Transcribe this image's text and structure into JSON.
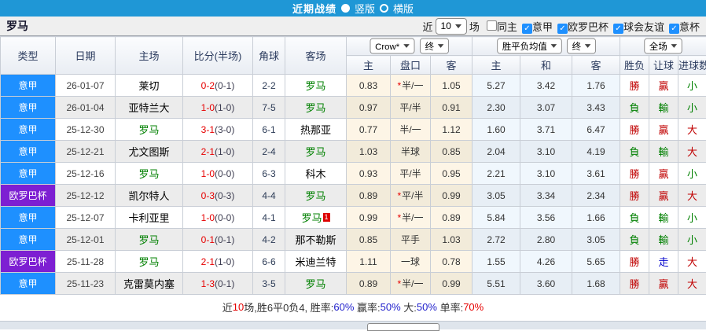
{
  "titlebar": {
    "title": "近期战绩",
    "vertical_label": "竖版",
    "horizontal_label": "横版"
  },
  "controls": {
    "team": "罗马",
    "recent_label": "近",
    "count_value": "10",
    "matches_label": "场",
    "checkboxes": [
      {
        "label": "同主",
        "checked": false
      },
      {
        "label": "意甲",
        "checked": true
      },
      {
        "label": "欧罗巴杯",
        "checked": true
      },
      {
        "label": "球会友谊",
        "checked": true
      },
      {
        "label": "意杯",
        "checked": true
      }
    ]
  },
  "table": {
    "headers": [
      "类型",
      "日期",
      "主场",
      "比分(半场)",
      "角球",
      "客场"
    ],
    "sub_headers": [
      "主",
      "盘口",
      "客",
      "主",
      "和",
      "客",
      "胜负",
      "让球",
      "进球数"
    ],
    "dropdowns": {
      "odds_company": "Crow*",
      "odds_time1": "终",
      "avg_label": "胜平负均值",
      "odds_time2": "终",
      "scope": "全场"
    },
    "rows": [
      {
        "type": "意甲",
        "type_color": "league_blue",
        "date": "26-01-07",
        "home": "莱切",
        "home_roma": false,
        "score": "0-2",
        "half": "(0-1)",
        "corner": "2-2",
        "away": "罗马",
        "away_roma": true,
        "badge": "",
        "crown_home": "0.83",
        "handicap_star": true,
        "handicap": "半/一",
        "crown_away": "1.05",
        "avg_home": "5.27",
        "avg_draw": "3.42",
        "avg_away": "1.76",
        "res": [
          [
            "勝",
            "red"
          ],
          [
            "贏",
            "red"
          ],
          [
            "小",
            "green"
          ]
        ]
      },
      {
        "type": "意甲",
        "type_color": "league_blue",
        "date": "26-01-04",
        "home": "亚特兰大",
        "home_roma": false,
        "score": "1-0",
        "half": "(1-0)",
        "corner": "7-5",
        "away": "罗马",
        "away_roma": true,
        "badge": "",
        "crown_home": "0.97",
        "handicap_star": false,
        "handicap": "平/半",
        "crown_away": "0.91",
        "avg_home": "2.30",
        "avg_draw": "3.07",
        "avg_away": "3.43",
        "res": [
          [
            "負",
            "green"
          ],
          [
            "輸",
            "green"
          ],
          [
            "小",
            "green"
          ]
        ]
      },
      {
        "type": "意甲",
        "type_color": "league_blue",
        "date": "25-12-30",
        "home": "罗马",
        "home_roma": true,
        "score": "3-1",
        "half": "(3-0)",
        "corner": "6-1",
        "away": "热那亚",
        "away_roma": false,
        "badge": "",
        "crown_home": "0.77",
        "handicap_star": false,
        "handicap": "半/一",
        "crown_away": "1.12",
        "avg_home": "1.60",
        "avg_draw": "3.71",
        "avg_away": "6.47",
        "res": [
          [
            "勝",
            "red"
          ],
          [
            "贏",
            "red"
          ],
          [
            "大",
            "red"
          ]
        ]
      },
      {
        "type": "意甲",
        "type_color": "league_blue",
        "date": "25-12-21",
        "home": "尤文图斯",
        "home_roma": false,
        "score": "2-1",
        "half": "(1-0)",
        "corner": "2-4",
        "away": "罗马",
        "away_roma": true,
        "badge": "",
        "crown_home": "1.03",
        "handicap_star": false,
        "handicap": "半球",
        "crown_away": "0.85",
        "avg_home": "2.04",
        "avg_draw": "3.10",
        "avg_away": "4.19",
        "res": [
          [
            "負",
            "green"
          ],
          [
            "輸",
            "green"
          ],
          [
            "大",
            "red"
          ]
        ]
      },
      {
        "type": "意甲",
        "type_color": "league_blue",
        "date": "25-12-16",
        "home": "罗马",
        "home_roma": true,
        "score": "1-0",
        "half": "(0-0)",
        "corner": "6-3",
        "away": "科木",
        "away_roma": false,
        "badge": "",
        "crown_home": "0.93",
        "handicap_star": false,
        "handicap": "平/半",
        "crown_away": "0.95",
        "avg_home": "2.21",
        "avg_draw": "3.10",
        "avg_away": "3.61",
        "res": [
          [
            "勝",
            "red"
          ],
          [
            "贏",
            "red"
          ],
          [
            "小",
            "green"
          ]
        ]
      },
      {
        "type": "欧罗巴杯",
        "type_color": "cup_purple",
        "date": "25-12-12",
        "home": "凯尔特人",
        "home_roma": false,
        "score": "0-3",
        "half": "(0-3)",
        "corner": "4-4",
        "away": "罗马",
        "away_roma": true,
        "badge": "",
        "crown_home": "0.89",
        "handicap_star": true,
        "handicap": "平/半",
        "crown_away": "0.99",
        "avg_home": "3.05",
        "avg_draw": "3.34",
        "avg_away": "2.34",
        "res": [
          [
            "勝",
            "red"
          ],
          [
            "贏",
            "red"
          ],
          [
            "大",
            "red"
          ]
        ]
      },
      {
        "type": "意甲",
        "type_color": "league_blue",
        "date": "25-12-07",
        "home": "卡利亚里",
        "home_roma": false,
        "score": "1-0",
        "half": "(0-0)",
        "corner": "4-1",
        "away": "罗马",
        "away_roma": true,
        "badge": "1",
        "crown_home": "0.99",
        "handicap_star": true,
        "handicap": "半/一",
        "crown_away": "0.89",
        "avg_home": "5.84",
        "avg_draw": "3.56",
        "avg_away": "1.66",
        "res": [
          [
            "負",
            "green"
          ],
          [
            "輸",
            "green"
          ],
          [
            "小",
            "green"
          ]
        ]
      },
      {
        "type": "意甲",
        "type_color": "league_blue",
        "date": "25-12-01",
        "home": "罗马",
        "home_roma": true,
        "score": "0-1",
        "half": "(0-1)",
        "corner": "4-2",
        "away": "那不勒斯",
        "away_roma": false,
        "badge": "",
        "crown_home": "0.85",
        "handicap_star": false,
        "handicap": "平手",
        "crown_away": "1.03",
        "avg_home": "2.72",
        "avg_draw": "2.80",
        "avg_away": "3.05",
        "res": [
          [
            "負",
            "green"
          ],
          [
            "輸",
            "green"
          ],
          [
            "小",
            "green"
          ]
        ]
      },
      {
        "type": "欧罗巴杯",
        "type_color": "cup_purple",
        "date": "25-11-28",
        "home": "罗马",
        "home_roma": true,
        "score": "2-1",
        "half": "(1-0)",
        "corner": "6-6",
        "away": "米迪兰特",
        "away_roma": false,
        "badge": "",
        "crown_home": "1.11",
        "handicap_star": false,
        "handicap": "一球",
        "crown_away": "0.78",
        "avg_home": "1.55",
        "avg_draw": "4.26",
        "avg_away": "5.65",
        "res": [
          [
            "勝",
            "red"
          ],
          [
            "走",
            "blue"
          ],
          [
            "大",
            "red"
          ]
        ]
      },
      {
        "type": "意甲",
        "type_color": "league_blue",
        "date": "25-11-23",
        "home": "克雷莫内塞",
        "home_roma": false,
        "score": "1-3",
        "half": "(0-1)",
        "corner": "3-5",
        "away": "罗马",
        "away_roma": true,
        "badge": "",
        "crown_home": "0.89",
        "handicap_star": true,
        "handicap": "半/一",
        "crown_away": "0.99",
        "avg_home": "5.51",
        "avg_draw": "3.60",
        "avg_away": "1.68",
        "res": [
          [
            "勝",
            "red"
          ],
          [
            "贏",
            "red"
          ],
          [
            "大",
            "red"
          ]
        ]
      }
    ]
  },
  "footer": {
    "segments": [
      {
        "t": "近",
        "c": "dark"
      },
      {
        "t": "10",
        "c": "red"
      },
      {
        "t": "场,胜6平0负4, 胜率:",
        "c": "dark"
      },
      {
        "t": "60%",
        "c": "blue"
      },
      {
        "t": " 赢率:",
        "c": "dark"
      },
      {
        "t": "50%",
        "c": "blue"
      },
      {
        "t": " 大:",
        "c": "dark"
      },
      {
        "t": "50%",
        "c": "blue"
      },
      {
        "t": " 单率:",
        "c": "dark"
      },
      {
        "t": "70%",
        "c": "red"
      }
    ]
  },
  "colors": {
    "titlebar_blue": "#1f97d6",
    "league_blue": "#1e90ff",
    "cup_purple": "#7d1fd2",
    "red": "#c00000",
    "green": "#008000",
    "blue": "#0000cc",
    "score_red": "#e60000",
    "footer_dark": "#333333",
    "footer_red": "#e60000",
    "footer_blue": "#2222cc",
    "checkbox_blue": "#1e90ff"
  }
}
